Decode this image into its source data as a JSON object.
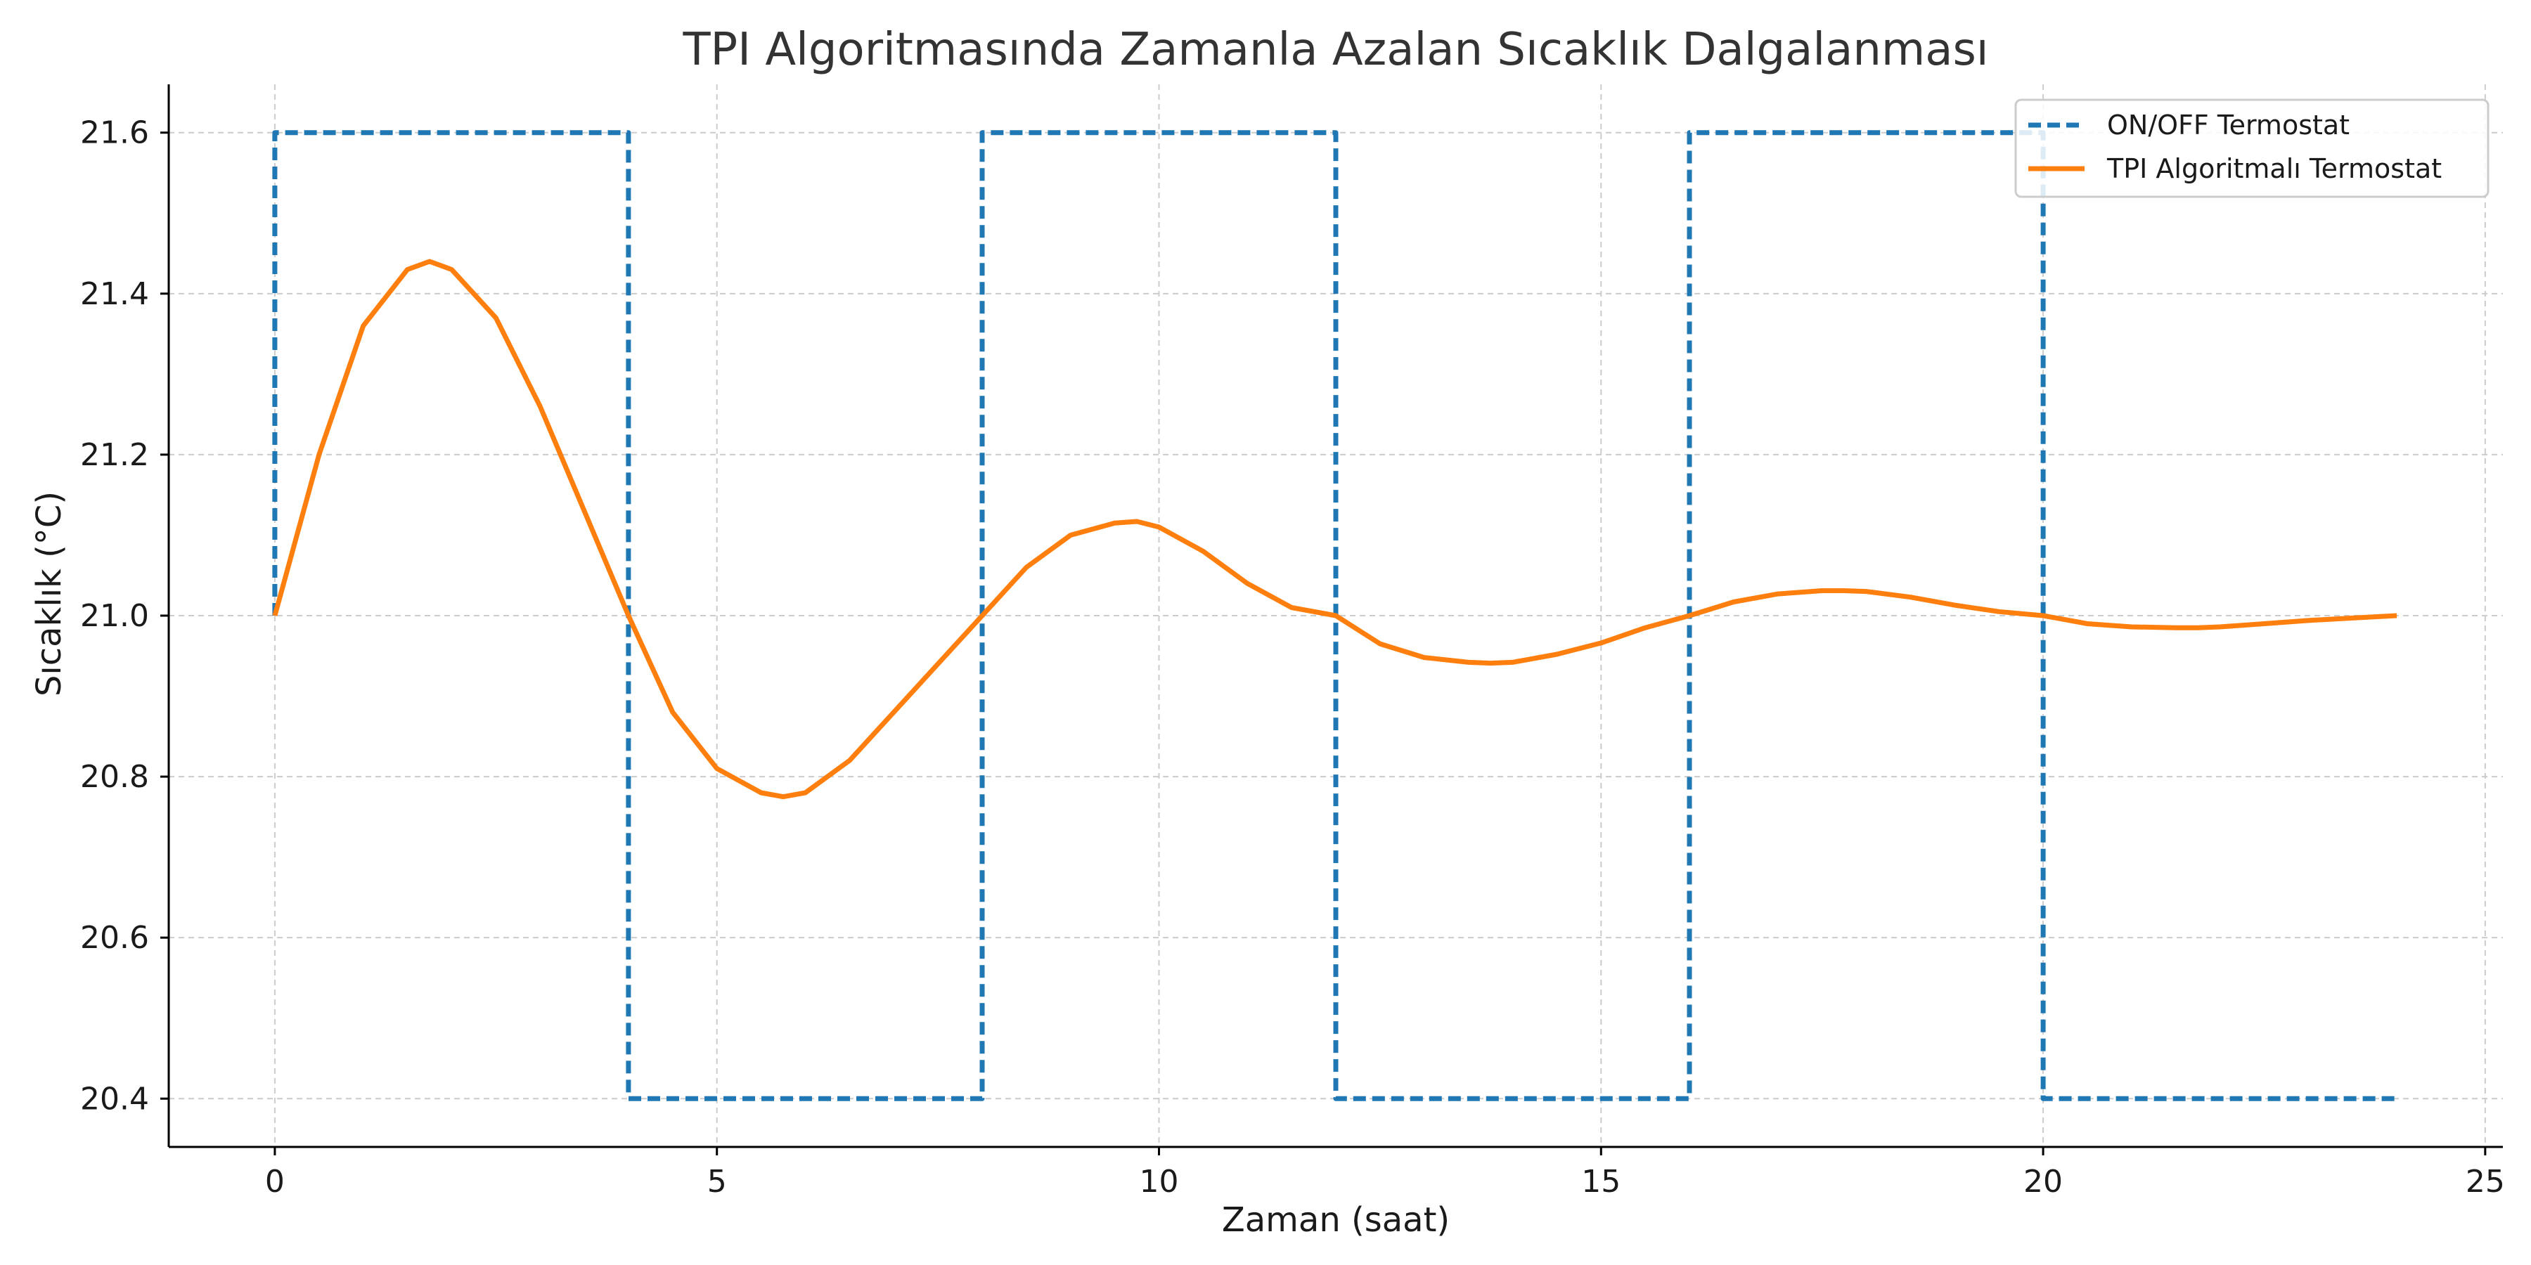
{
  "chart_data": {
    "type": "line",
    "title": "TPI Algoritmasında Zamanla Azalan Sıcaklık Dalgalanması",
    "xlabel": "Zaman (saat)",
    "ylabel": "Sıcaklık (°C)",
    "xlim": [
      -1.2,
      25.2
    ],
    "ylim": [
      20.34,
      21.66
    ],
    "xticks": [
      0,
      5,
      10,
      15,
      20,
      25
    ],
    "xtick_labels": [
      "0",
      "5",
      "10",
      "15",
      "20",
      "25"
    ],
    "yticks": [
      20.4,
      20.6,
      20.8,
      21.0,
      21.2,
      21.4,
      21.6
    ],
    "ytick_labels": [
      "20.4",
      "20.6",
      "20.8",
      "21.0",
      "21.2",
      "21.4",
      "21.6"
    ],
    "grid": true,
    "legend": "top-right",
    "series": [
      {
        "name": "ON/OFF Termostat",
        "style": "dashed",
        "color": "#1f77b4",
        "x": [
          0,
          0,
          4,
          4,
          8,
          8,
          12,
          12,
          16,
          16,
          20,
          20,
          24
        ],
        "y": [
          21.0,
          21.6,
          21.6,
          20.4,
          20.4,
          21.6,
          21.6,
          20.4,
          20.4,
          21.6,
          21.6,
          20.4,
          20.4
        ]
      },
      {
        "name": "TPI Algoritmalı Termostat",
        "style": "solid",
        "color": "#ff7f0e",
        "x": [
          0,
          0.5,
          1.0,
          1.5,
          1.75,
          2.0,
          2.5,
          3.0,
          3.5,
          4.0,
          4.5,
          5.0,
          5.5,
          5.75,
          6.0,
          6.5,
          7.0,
          7.5,
          8.0,
          8.5,
          9.0,
          9.5,
          9.75,
          10.0,
          10.5,
          11.0,
          11.5,
          12.0,
          12.5,
          13.0,
          13.5,
          13.75,
          14.0,
          14.5,
          15.0,
          15.5,
          16.0,
          16.5,
          17.0,
          17.5,
          17.75,
          18.0,
          18.5,
          19.0,
          19.5,
          20.0,
          20.5,
          21.0,
          21.5,
          21.75,
          22.0,
          22.5,
          23.0,
          23.5,
          24.0
        ],
        "y": [
          21.0,
          21.2,
          21.36,
          21.43,
          21.44,
          21.43,
          21.37,
          21.26,
          21.13,
          21.0,
          20.88,
          20.81,
          20.78,
          20.775,
          20.78,
          20.82,
          20.88,
          20.94,
          21.0,
          21.06,
          21.1,
          21.115,
          21.117,
          21.11,
          21.08,
          21.04,
          21.01,
          21.0,
          20.965,
          20.948,
          20.942,
          20.941,
          20.942,
          20.952,
          20.966,
          20.985,
          21.0,
          21.017,
          21.027,
          21.031,
          21.031,
          21.03,
          21.023,
          21.013,
          21.005,
          21.0,
          20.99,
          20.986,
          20.985,
          20.985,
          20.986,
          20.99,
          20.994,
          20.997,
          21.0
        ]
      }
    ]
  }
}
